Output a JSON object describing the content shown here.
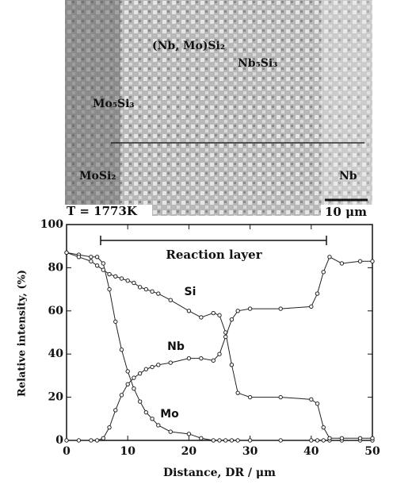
{
  "micrograph": {
    "labels": [
      "(Nb, Mo)Si₂",
      "Nb₅Si₃",
      "Mo₅Si₃",
      "MoSi₂",
      "Nb"
    ],
    "temperature": "T = 1773K",
    "scale_bar": "10 μm"
  },
  "chart_data": {
    "type": "line",
    "xlabel": "Distance,  DR / μm",
    "ylabel": "Relative intensity,  (%)",
    "annotations": [
      "Reaction layer",
      "Si",
      "Nb",
      "Mo"
    ],
    "x": [
      0,
      2,
      4,
      5,
      6,
      7,
      8,
      9,
      10,
      11,
      12,
      13,
      14,
      15,
      17,
      20,
      22,
      24,
      25,
      26,
      27,
      28,
      30,
      35,
      40,
      41,
      42,
      43,
      45,
      48,
      50
    ],
    "series": [
      {
        "name": "Mo",
        "color": "#222222",
        "values": [
          87,
          86,
          85,
          85,
          82,
          70,
          55,
          42,
          32,
          24,
          18,
          13,
          10,
          7,
          4,
          3,
          1,
          0,
          0,
          0,
          0,
          0,
          0,
          0,
          0,
          0,
          0,
          0,
          0,
          0,
          0
        ]
      },
      {
        "name": "Si",
        "color": "#222222",
        "values": [
          87,
          85,
          83,
          81,
          79,
          77,
          76,
          75,
          74,
          73,
          71,
          70,
          69,
          68,
          65,
          60,
          57,
          59,
          58,
          50,
          35,
          22,
          20,
          20,
          19,
          17,
          6,
          1,
          1,
          1,
          1
        ]
      },
      {
        "name": "Nb",
        "color": "#222222",
        "values": [
          0,
          0,
          0,
          0,
          1,
          6,
          14,
          21,
          26,
          29,
          31,
          33,
          34,
          35,
          36,
          38,
          38,
          37,
          40,
          48,
          56,
          60,
          61,
          61,
          62,
          68,
          78,
          85,
          82,
          83,
          83
        ]
      }
    ],
    "xlim": [
      0,
      50
    ],
    "xticks": [
      0,
      10,
      20,
      30,
      40,
      50
    ],
    "ylim": [
      0,
      100
    ],
    "yticks": [
      0,
      20,
      40,
      60,
      80,
      100
    ]
  }
}
